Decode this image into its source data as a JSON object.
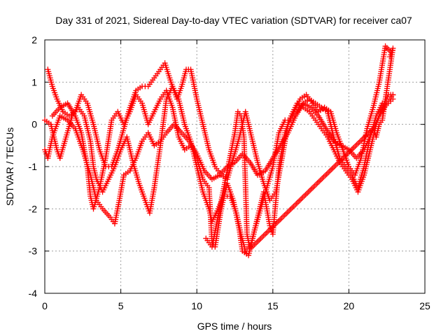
{
  "chart_data": {
    "type": "scatter",
    "title": "Day 331 of 2021, Sidereal Day-to-day VTEC variation (SDTVAR) for receiver ca07",
    "xlabel": "GPS time / hours",
    "ylabel": "SDTVAR / TECUs",
    "xlim": [
      0,
      25
    ],
    "ylim": [
      -4,
      2
    ],
    "xticks": [
      0,
      5,
      10,
      15,
      20,
      25
    ],
    "yticks": [
      -4,
      -3,
      -2,
      -1,
      0,
      1,
      2
    ],
    "grid": true,
    "marker": "+",
    "marker_color": "#ff0000",
    "series": [
      {
        "points": [
          [
            0.0,
            -0.6
          ],
          [
            0.2,
            -0.8
          ],
          [
            0.5,
            -0.3
          ],
          [
            1.0,
            0.2
          ],
          [
            1.5,
            0.1
          ],
          [
            2.0,
            -0.1
          ],
          [
            2.5,
            -0.6
          ],
          [
            3.0,
            -1.2
          ],
          [
            3.4,
            -1.8
          ],
          [
            3.8,
            -2.0
          ],
          [
            4.3,
            -2.2
          ],
          [
            4.6,
            -2.35
          ],
          [
            4.9,
            -1.8
          ],
          [
            5.2,
            -1.2
          ],
          [
            5.6,
            -1.1
          ],
          [
            6.0,
            -0.8
          ],
          [
            6.4,
            -0.4
          ],
          [
            6.8,
            -0.2
          ],
          [
            7.2,
            -0.5
          ],
          [
            7.6,
            -0.4
          ],
          [
            8.0,
            -0.2
          ],
          [
            8.5,
            0.0
          ],
          [
            9.0,
            -0.2
          ],
          [
            9.5,
            -0.4
          ],
          [
            10.0,
            -0.7
          ],
          [
            10.5,
            -1.1
          ],
          [
            11.0,
            -1.3
          ],
          [
            11.5,
            -1.2
          ],
          [
            12.0,
            -1.0
          ],
          [
            12.5,
            -0.9
          ],
          [
            13.0,
            -0.7
          ],
          [
            13.5,
            -0.9
          ],
          [
            14.0,
            -1.2
          ],
          [
            14.5,
            -1.1
          ],
          [
            15.0,
            -0.8
          ],
          [
            15.5,
            -0.5
          ],
          [
            16.0,
            -0.2
          ],
          [
            16.5,
            0.2
          ],
          [
            17.0,
            0.5
          ],
          [
            17.5,
            0.4
          ],
          [
            18.0,
            0.2
          ],
          [
            18.5,
            -0.1
          ],
          [
            19.0,
            -0.4
          ],
          [
            19.5,
            -0.5
          ],
          [
            20.0,
            -0.6
          ],
          [
            20.5,
            -0.8
          ],
          [
            21.0,
            -0.6
          ],
          [
            21.5,
            -0.2
          ],
          [
            22.0,
            0.2
          ],
          [
            22.5,
            0.5
          ],
          [
            22.9,
            0.7
          ]
        ]
      },
      {
        "points": [
          [
            0.2,
            1.3
          ],
          [
            0.5,
            0.9
          ],
          [
            0.8,
            0.6
          ],
          [
            1.2,
            0.3
          ],
          [
            1.6,
            0.2
          ],
          [
            2.0,
            0.3
          ],
          [
            2.4,
            0.7
          ],
          [
            2.8,
            0.5
          ],
          [
            3.2,
            0.0
          ],
          [
            3.6,
            -0.6
          ],
          [
            4.0,
            -1.0
          ],
          [
            4.4,
            -1.0
          ],
          [
            4.8,
            -0.6
          ],
          [
            5.2,
            -0.1
          ],
          [
            5.6,
            0.4
          ],
          [
            6.0,
            0.8
          ],
          [
            6.4,
            0.9
          ],
          [
            6.8,
            0.9
          ],
          [
            7.2,
            1.1
          ],
          [
            7.6,
            1.3
          ],
          [
            7.9,
            1.45
          ],
          [
            8.3,
            1.0
          ],
          [
            8.7,
            0.6
          ],
          [
            9.0,
            0.9
          ],
          [
            9.3,
            1.3
          ],
          [
            9.6,
            1.3
          ],
          [
            10.0,
            0.6
          ],
          [
            10.4,
            0.0
          ],
          [
            10.8,
            -0.6
          ],
          [
            11.2,
            -1.0
          ],
          [
            11.6,
            -1.2
          ],
          [
            12.0,
            -1.3
          ],
          [
            12.4,
            -0.8
          ],
          [
            12.8,
            -0.3
          ],
          [
            13.2,
            0.3
          ],
          [
            13.6,
            -0.3
          ],
          [
            14.0,
            -0.9
          ],
          [
            14.4,
            -1.4
          ],
          [
            14.8,
            -1.8
          ],
          [
            15.2,
            -1.6
          ],
          [
            15.6,
            -0.8
          ],
          [
            16.0,
            0.0
          ],
          [
            16.4,
            0.3
          ],
          [
            16.8,
            0.6
          ],
          [
            17.2,
            0.7
          ],
          [
            17.6,
            0.5
          ],
          [
            18.0,
            0.3
          ],
          [
            18.4,
            0.4
          ],
          [
            18.8,
            0.3
          ],
          [
            19.2,
            -0.2
          ],
          [
            19.6,
            -0.6
          ],
          [
            20.0,
            -1.0
          ],
          [
            20.4,
            -1.2
          ],
          [
            20.8,
            -0.8
          ],
          [
            21.2,
            -0.1
          ],
          [
            21.6,
            0.4
          ],
          [
            22.0,
            1.0
          ],
          [
            22.4,
            1.85
          ],
          [
            22.8,
            1.7
          ]
        ]
      },
      {
        "points": [
          [
            0.0,
            0.1
          ],
          [
            0.4,
            0.0
          ],
          [
            0.8,
            -0.6
          ],
          [
            1.0,
            -0.8
          ],
          [
            1.4,
            -0.3
          ],
          [
            1.8,
            0.2
          ],
          [
            2.2,
            0.4
          ],
          [
            2.6,
            0.2
          ],
          [
            3.0,
            -0.4
          ],
          [
            3.2,
            -1.0
          ],
          [
            3.4,
            -1.3
          ],
          [
            3.8,
            -1.6
          ],
          [
            4.2,
            -1.3
          ],
          [
            4.6,
            -1.0
          ],
          [
            5.0,
            -0.6
          ],
          [
            5.4,
            -0.3
          ],
          [
            5.8,
            -0.9
          ],
          [
            6.2,
            -1.4
          ],
          [
            6.6,
            -1.8
          ],
          [
            6.9,
            -2.1
          ],
          [
            7.2,
            -1.5
          ],
          [
            7.6,
            -0.5
          ],
          [
            8.0,
            0.6
          ],
          [
            8.4,
            0.9
          ],
          [
            8.8,
            0.6
          ],
          [
            9.2,
            0.0
          ],
          [
            9.6,
            -0.4
          ],
          [
            10.0,
            -1.0
          ],
          [
            10.4,
            -1.6
          ],
          [
            10.8,
            -2.0
          ],
          [
            11.0,
            -2.3
          ],
          [
            11.4,
            -2.0
          ],
          [
            11.8,
            -1.7
          ],
          [
            12.2,
            -1.7
          ],
          [
            12.6,
            -2.1
          ],
          [
            12.9,
            -2.6
          ],
          [
            13.2,
            -3.0
          ],
          [
            13.6,
            -2.8
          ],
          [
            14.0,
            -2.2
          ],
          [
            14.4,
            -1.6
          ],
          [
            14.8,
            -2.4
          ],
          [
            15.0,
            -2.6
          ],
          [
            15.4,
            -1.0
          ],
          [
            15.8,
            -0.2
          ],
          [
            16.2,
            0.2
          ],
          [
            16.6,
            0.5
          ],
          [
            17.0,
            0.4
          ],
          [
            17.4,
            0.3
          ],
          [
            17.8,
            0.1
          ],
          [
            18.2,
            -0.1
          ],
          [
            18.6,
            -0.3
          ],
          [
            19.0,
            -0.6
          ],
          [
            19.4,
            -0.9
          ],
          [
            19.8,
            -1.1
          ],
          [
            20.2,
            -1.3
          ],
          [
            20.6,
            -1.6
          ],
          [
            21.0,
            -1.2
          ],
          [
            21.4,
            -0.6
          ],
          [
            21.8,
            0.0
          ],
          [
            22.2,
            0.4
          ],
          [
            22.6,
            0.7
          ],
          [
            22.9,
            0.7
          ]
        ]
      },
      {
        "points": [
          [
            0.5,
            0.2
          ],
          [
            1.0,
            0.4
          ],
          [
            1.5,
            0.5
          ],
          [
            2.0,
            0.2
          ],
          [
            2.4,
            -0.2
          ],
          [
            2.8,
            -1.0
          ],
          [
            3.0,
            -1.7
          ],
          [
            3.2,
            -2.0
          ],
          [
            3.6,
            -1.5
          ],
          [
            4.0,
            -0.8
          ],
          [
            4.4,
            0.1
          ],
          [
            4.8,
            0.3
          ],
          [
            5.2,
            0.0
          ],
          [
            5.6,
            0.3
          ],
          [
            6.0,
            0.7
          ],
          [
            6.4,
            0.5
          ],
          [
            6.8,
            0.0
          ],
          [
            7.2,
            0.3
          ],
          [
            7.6,
            0.6
          ],
          [
            8.0,
            0.8
          ],
          [
            8.4,
            0.4
          ],
          [
            8.8,
            -0.3
          ],
          [
            9.2,
            -0.6
          ],
          [
            9.6,
            -0.5
          ],
          [
            10.0,
            -0.8
          ],
          [
            10.4,
            -1.3
          ],
          [
            10.8,
            -1.5
          ],
          [
            11.0,
            -2.8
          ],
          [
            11.2,
            -2.9
          ],
          [
            11.6,
            -2.0
          ],
          [
            12.0,
            -1.4
          ],
          [
            12.4,
            -1.8
          ],
          [
            12.8,
            -2.5
          ],
          [
            13.0,
            -3.0
          ],
          [
            13.4,
            -3.1
          ],
          [
            13.8,
            -2.5
          ],
          [
            14.2,
            -2.0
          ],
          [
            14.6,
            -1.5
          ],
          [
            15.0,
            -1.0
          ],
          [
            15.4,
            -0.2
          ],
          [
            15.8,
            0.1
          ],
          [
            16.2,
            0.1
          ],
          [
            16.6,
            0.3
          ],
          [
            17.0,
            0.5
          ],
          [
            17.4,
            0.6
          ],
          [
            17.8,
            0.5
          ],
          [
            18.2,
            0.4
          ],
          [
            18.6,
            0.3
          ],
          [
            19.0,
            -0.3
          ],
          [
            19.4,
            -0.8
          ],
          [
            19.8,
            -1.0
          ],
          [
            20.2,
            -1.2
          ],
          [
            20.6,
            -1.5
          ],
          [
            21.0,
            -1.0
          ],
          [
            21.4,
            -0.3
          ],
          [
            21.8,
            0.2
          ],
          [
            22.2,
            0.5
          ],
          [
            22.6,
            0.5
          ],
          [
            22.9,
            0.6
          ]
        ]
      },
      {
        "points": [
          [
            10.6,
            -2.7
          ],
          [
            10.8,
            -2.8
          ],
          [
            11.0,
            -2.9
          ],
          [
            12.5,
            -0.2
          ],
          [
            12.7,
            0.3
          ],
          [
            12.9,
            0.2
          ],
          [
            13.1,
            -0.3
          ],
          [
            13.3,
            -2.6
          ],
          [
            13.5,
            -2.95
          ],
          [
            21.6,
            -0.1
          ],
          [
            21.8,
            -0.3
          ],
          [
            22.0,
            0.0
          ],
          [
            22.2,
            0.1
          ],
          [
            22.9,
            1.8
          ],
          [
            22.7,
            1.6
          ]
        ]
      }
    ]
  }
}
